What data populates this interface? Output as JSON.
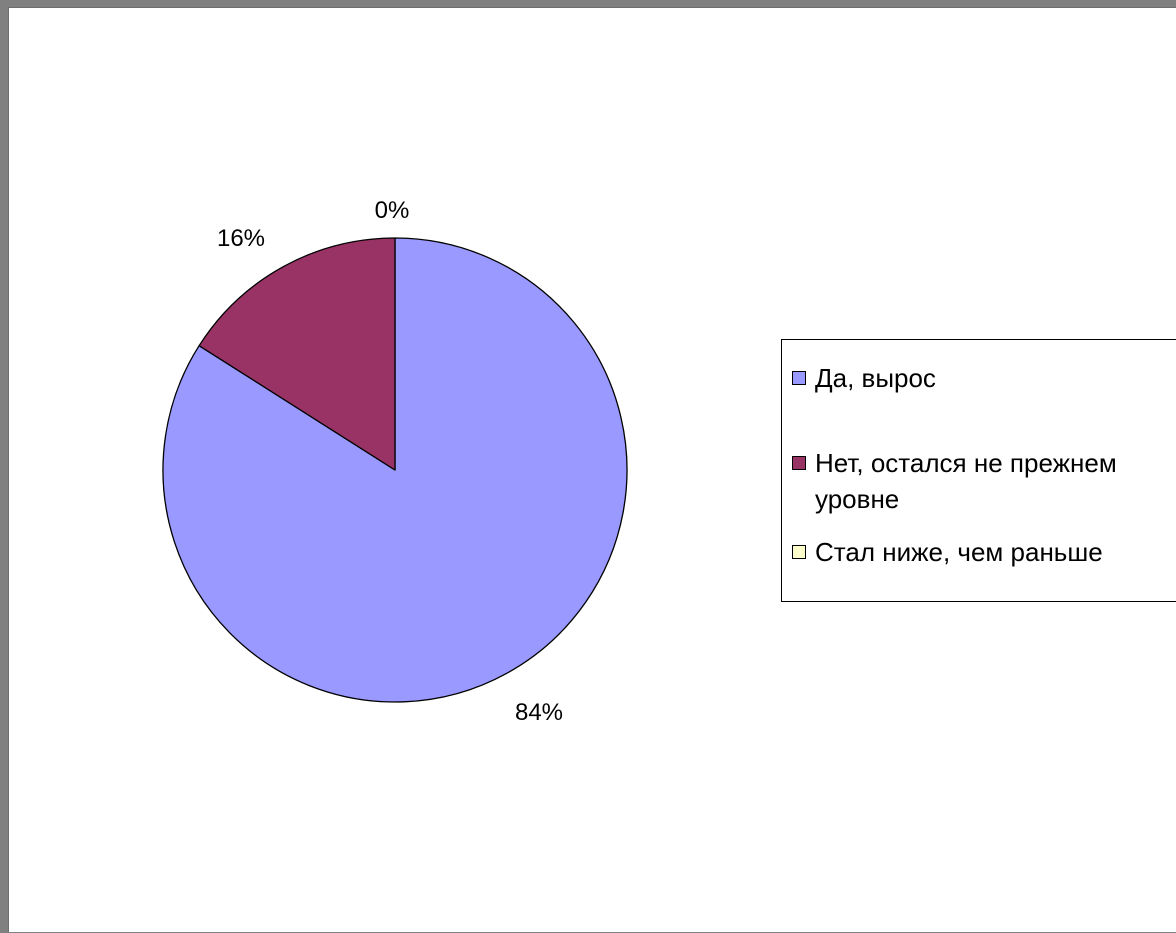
{
  "chart_data": {
    "type": "pie",
    "categories": [
      "Да, вырос",
      "Нет, остался не прежнем уровне",
      "Стал ниже, чем раньше"
    ],
    "values": [
      84,
      16,
      0
    ],
    "data_labels": [
      "84%",
      "16%",
      "0%"
    ],
    "colors": [
      "#9999ff",
      "#993366",
      "#ffffcc"
    ],
    "legend_placement": "right"
  },
  "legend": {
    "items": [
      {
        "lines": [
          "Да, вырос"
        ]
      },
      {
        "lines": [
          "Нет, остался не прежнем",
          "уровне"
        ]
      },
      {
        "lines": [
          "Стал ниже, чем раньше"
        ]
      }
    ]
  }
}
